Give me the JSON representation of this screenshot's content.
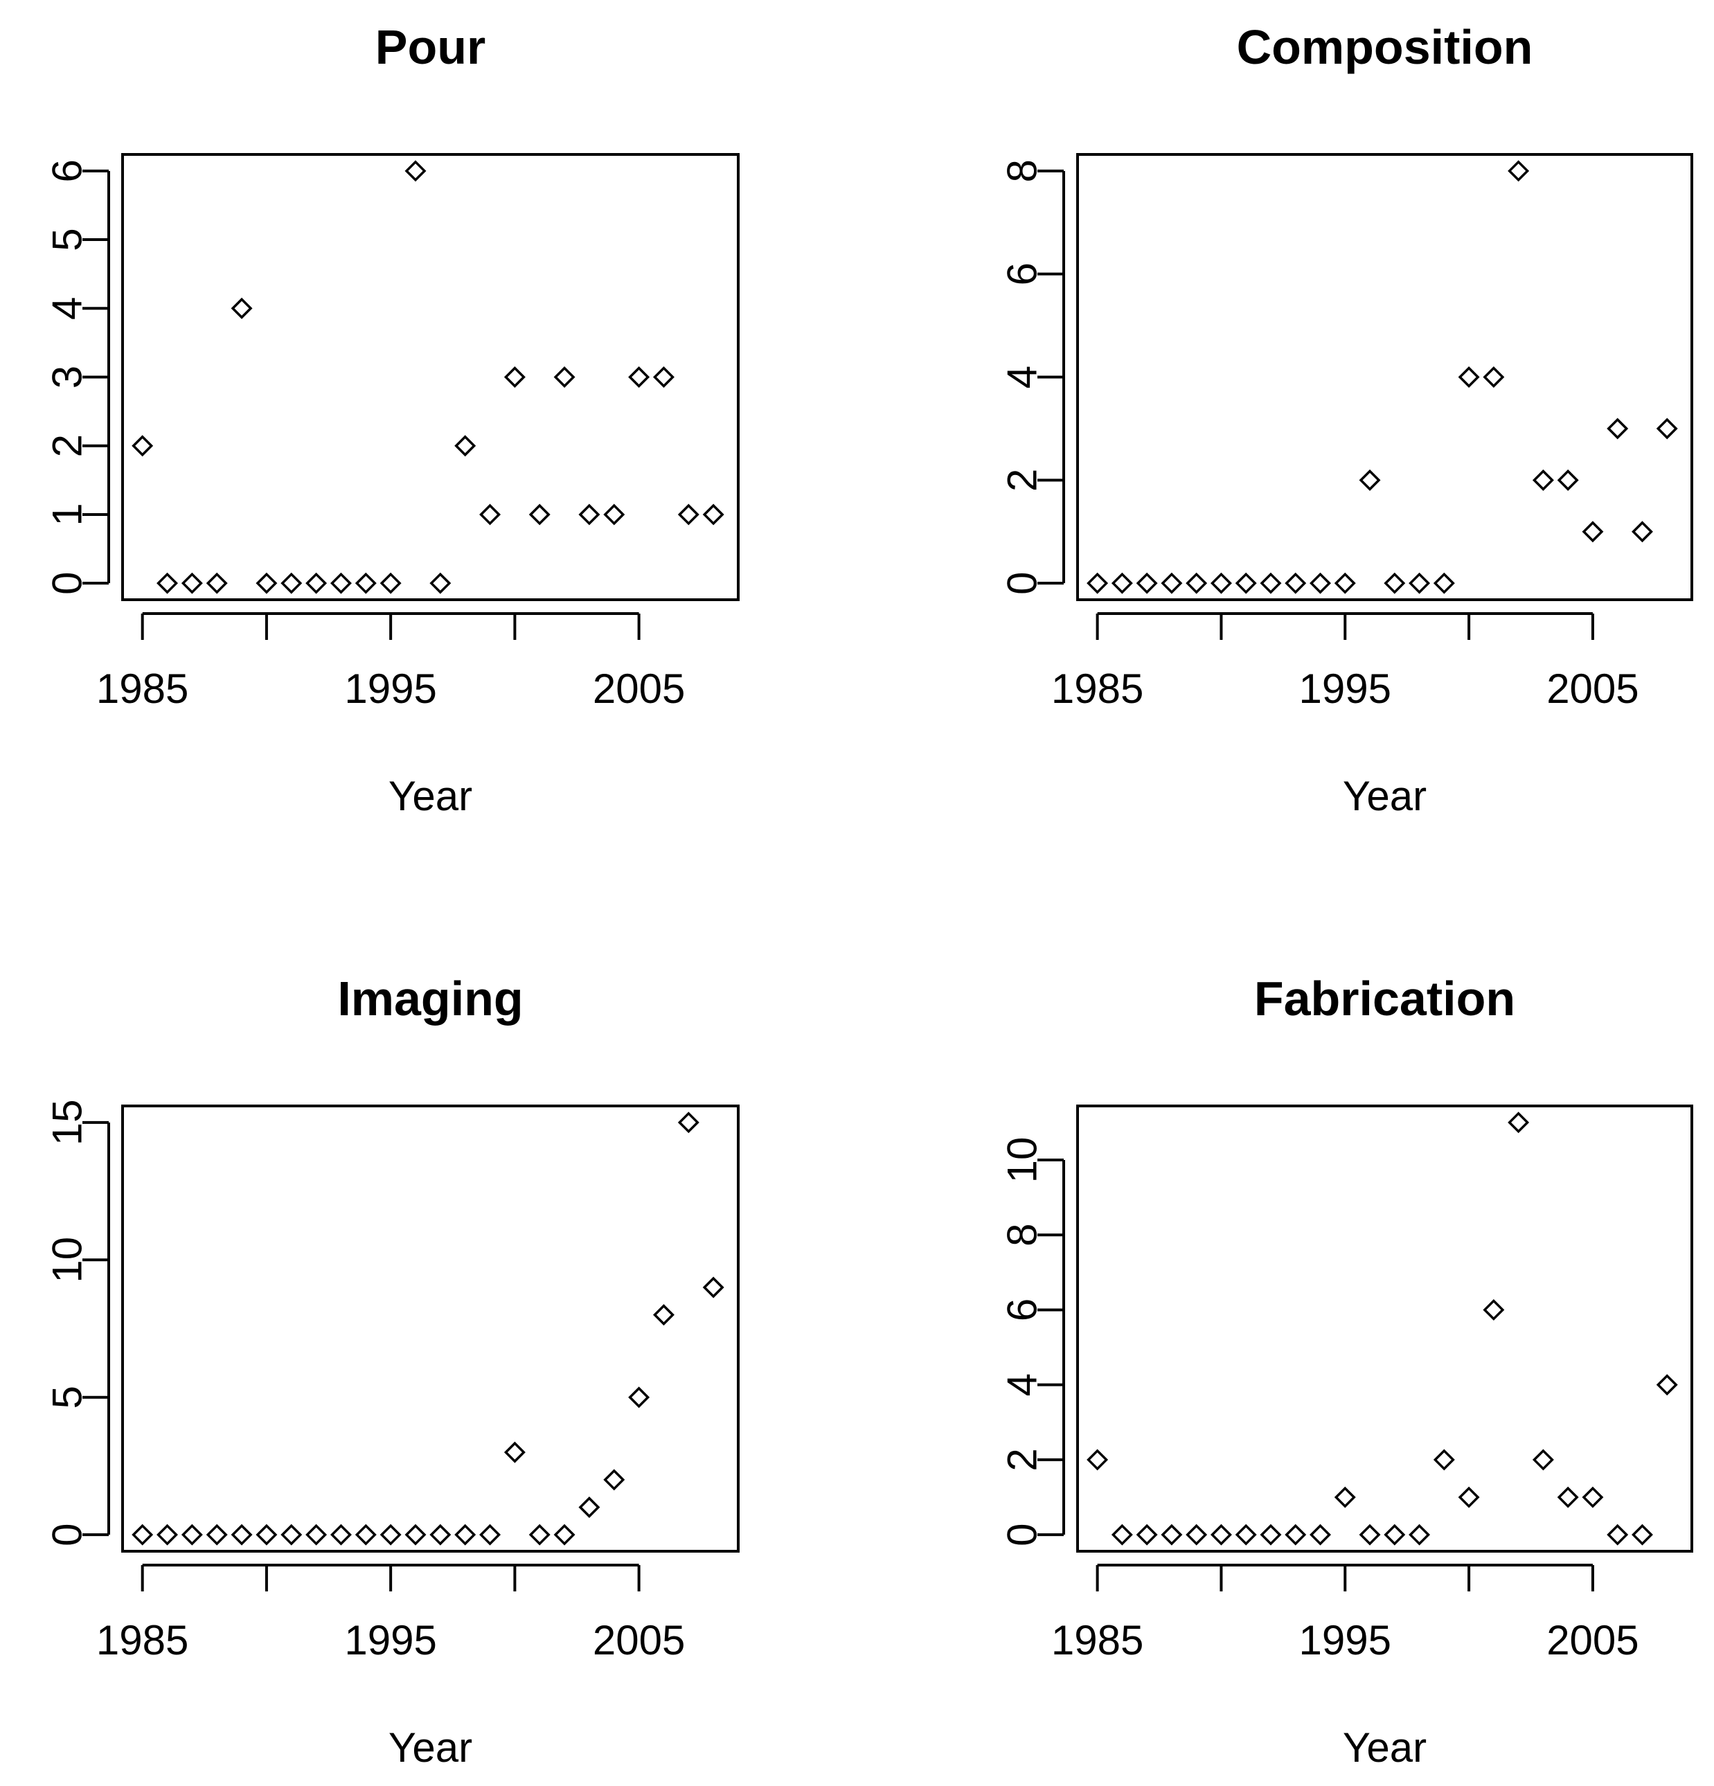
{
  "chart_data": [
    {
      "type": "scatter",
      "title": "Pour",
      "xlabel": "Year",
      "ylabel": "",
      "xlim": [
        1984.2,
        2009
      ],
      "ylim": [
        -0.24,
        6.24
      ],
      "xticks": [
        1985,
        1990,
        1995,
        2000,
        2005
      ],
      "xtick_labels": [
        "1985",
        "",
        "1995",
        "",
        "2005"
      ],
      "yticks": [
        0,
        1,
        2,
        3,
        4,
        5,
        6
      ],
      "ytick_labels": [
        "0",
        "1",
        "2",
        "3",
        "4",
        "5",
        "6"
      ],
      "x": [
        1985,
        1986,
        1987,
        1988,
        1989,
        1990,
        1991,
        1992,
        1993,
        1994,
        1995,
        1996,
        1997,
        1998,
        1999,
        2000,
        2001,
        2002,
        2003,
        2004,
        2005,
        2006,
        2007,
        2008
      ],
      "y": [
        2,
        0,
        0,
        0,
        4,
        0,
        0,
        0,
        0,
        0,
        0,
        6,
        0,
        2,
        1,
        3,
        1,
        3,
        1,
        1,
        3,
        3,
        1,
        1
      ]
    },
    {
      "type": "scatter",
      "title": "Composition",
      "xlabel": "Year",
      "ylabel": "",
      "xlim": [
        1984.2,
        2009
      ],
      "ylim": [
        -0.32,
        8.32
      ],
      "xticks": [
        1985,
        1990,
        1995,
        2000,
        2005
      ],
      "xtick_labels": [
        "1985",
        "",
        "1995",
        "",
        "2005"
      ],
      "yticks": [
        0,
        2,
        4,
        6,
        8
      ],
      "ytick_labels": [
        "0",
        "2",
        "4",
        "6",
        "8"
      ],
      "x": [
        1985,
        1986,
        1987,
        1988,
        1989,
        1990,
        1991,
        1992,
        1993,
        1994,
        1995,
        1996,
        1997,
        1998,
        1999,
        2000,
        2001,
        2002,
        2003,
        2004,
        2005,
        2006,
        2007,
        2008
      ],
      "y": [
        0,
        0,
        0,
        0,
        0,
        0,
        0,
        0,
        0,
        0,
        0,
        2,
        0,
        0,
        0,
        4,
        4,
        8,
        2,
        2,
        1,
        3,
        1,
        3
      ]
    },
    {
      "type": "scatter",
      "title": "Imaging",
      "xlabel": "Year",
      "ylabel": "",
      "xlim": [
        1984.2,
        2009
      ],
      "ylim": [
        -0.6,
        15.6
      ],
      "xticks": [
        1985,
        1990,
        1995,
        2000,
        2005
      ],
      "xtick_labels": [
        "1985",
        "",
        "1995",
        "",
        "2005"
      ],
      "yticks": [
        0,
        5,
        10,
        15
      ],
      "ytick_labels": [
        "0",
        "5",
        "10",
        "15"
      ],
      "x": [
        1985,
        1986,
        1987,
        1988,
        1989,
        1990,
        1991,
        1992,
        1993,
        1994,
        1995,
        1996,
        1997,
        1998,
        1999,
        2000,
        2001,
        2002,
        2003,
        2004,
        2005,
        2006,
        2007,
        2008
      ],
      "y": [
        0,
        0,
        0,
        0,
        0,
        0,
        0,
        0,
        0,
        0,
        0,
        0,
        0,
        0,
        0,
        3,
        0,
        0,
        1,
        2,
        5,
        8,
        15,
        9
      ]
    },
    {
      "type": "scatter",
      "title": "Fabrication",
      "xlabel": "Year",
      "ylabel": "",
      "xlim": [
        1984.2,
        2009
      ],
      "ylim": [
        -0.44,
        11.44
      ],
      "xticks": [
        1985,
        1990,
        1995,
        2000,
        2005
      ],
      "xtick_labels": [
        "1985",
        "",
        "1995",
        "",
        "2005"
      ],
      "yticks": [
        0,
        2,
        4,
        6,
        8,
        10
      ],
      "ytick_labels": [
        "0",
        "2",
        "4",
        "6",
        "8",
        "10"
      ],
      "x": [
        1985,
        1986,
        1987,
        1988,
        1989,
        1990,
        1991,
        1992,
        1993,
        1994,
        1995,
        1996,
        1997,
        1998,
        1999,
        2000,
        2001,
        2002,
        2003,
        2004,
        2005,
        2006,
        2007,
        2008
      ],
      "y": [
        2,
        0,
        0,
        0,
        0,
        0,
        0,
        0,
        0,
        0,
        1,
        0,
        0,
        0,
        2,
        1,
        6,
        11,
        2,
        1,
        1,
        0,
        0,
        4
      ]
    }
  ]
}
